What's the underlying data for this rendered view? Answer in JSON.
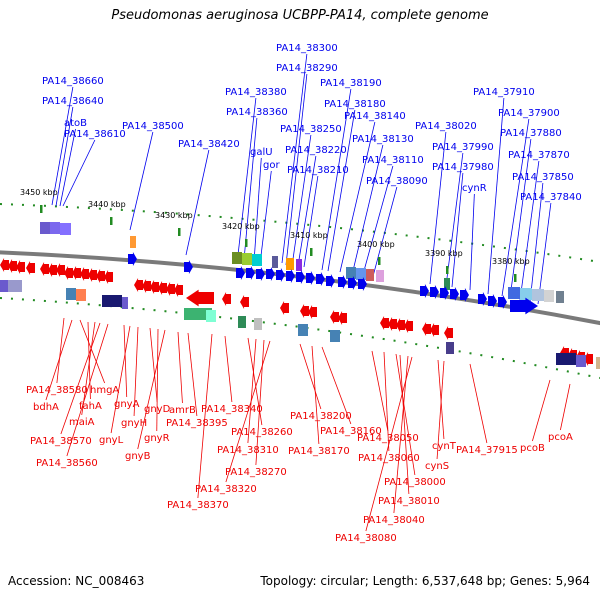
{
  "title": "Pseudomonas aeruginosa UCBPP-PA14, complete genome",
  "accession": "Accession: NC_008463",
  "topology": "Topology: circular; Length: 6,537,648 bp; Genes: 5,964",
  "colors": {
    "forward": "#0000ee",
    "reverse": "#ee0000",
    "backbone": "#7a7a7a",
    "tick": "#228b22"
  },
  "scale_labels": [
    "3450 kbp",
    "3440 kbp",
    "3430 kbp",
    "3420 kbp",
    "3410 kbp",
    "3400 kbp",
    "3390 kbp",
    "3380 kbp"
  ],
  "forward_labels": [
    "PA14_38660",
    "PA14_38640",
    "atoB",
    "PA14_38610",
    "PA14_38500",
    "PA14_38420",
    "PA14_38380",
    "PA14_38360",
    "galU",
    "gor",
    "PA14_38300",
    "PA14_38290",
    "PA14_38250",
    "PA14_38220",
    "PA14_38210",
    "PA14_38190",
    "PA14_38180",
    "PA14_38140",
    "PA14_38130",
    "PA14_38110",
    "PA14_38090",
    "PA14_38020",
    "PA14_37990",
    "PA14_37980",
    "cynR",
    "PA14_37910",
    "PA14_37900",
    "PA14_37880",
    "PA14_37870",
    "PA14_37850",
    "PA14_37840"
  ],
  "reverse_labels": [
    "PA14_38580",
    "bdhA",
    "hmgA",
    "fahA",
    "maiA",
    "PA14_38570",
    "PA14_38560",
    "gnyA",
    "gnyL",
    "gnyH",
    "gnyD",
    "gnyR",
    "gnyB",
    "amrB",
    "PA14_38395",
    "PA14_38340",
    "PA14_38370",
    "PA14_38260",
    "PA14_38310",
    "PA14_38270",
    "PA14_38320",
    "PA14_38200",
    "PA14_38170",
    "PA14_38160",
    "PA14_38050",
    "PA14_38060",
    "PA14_38000",
    "PA14_38010",
    "PA14_38040",
    "PA14_38080",
    "cynT",
    "cynS",
    "PA14_37915",
    "pcoB",
    "pcoA"
  ]
}
